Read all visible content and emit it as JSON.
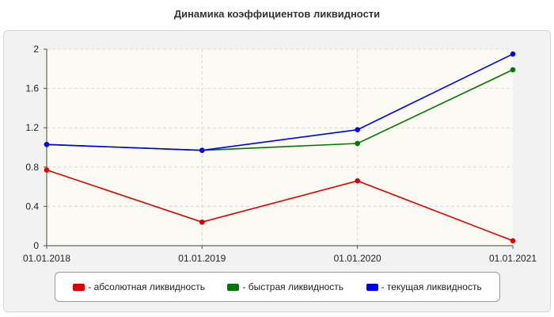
{
  "chart_data": {
    "type": "line",
    "title": "Динамика коэффициентов ликвидности",
    "categories": [
      "01.01.2018",
      "01.01.2019",
      "01.01.2020",
      "01.01.2021"
    ],
    "ylim": [
      0,
      2
    ],
    "yticks": [
      "0",
      "0.4",
      "0.8",
      "1.2",
      "1.6",
      "2"
    ],
    "grid": true,
    "legend_position": "bottom",
    "series": [
      {
        "name": "- абсолютная ликвидность",
        "color": "#dd0000",
        "values": [
          0.77,
          0.24,
          0.66,
          0.05
        ]
      },
      {
        "name": "- быстрая ликвидность",
        "color": "#007700",
        "values": [
          1.03,
          0.97,
          1.04,
          1.79
        ]
      },
      {
        "name": "- текущая ликвидность",
        "color": "#0000ee",
        "values": [
          1.03,
          0.97,
          1.18,
          1.95
        ]
      }
    ]
  }
}
